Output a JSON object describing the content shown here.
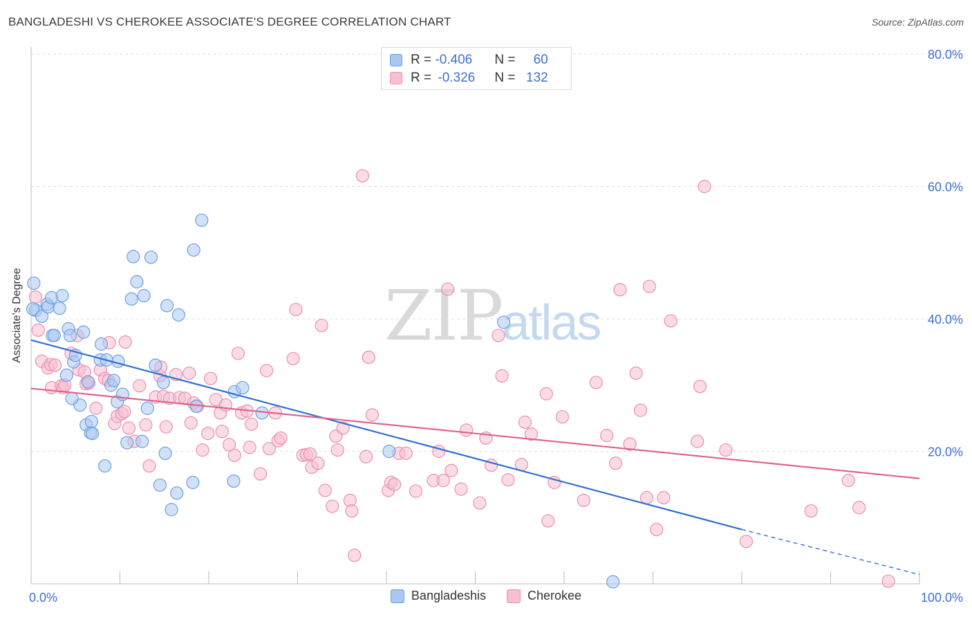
{
  "title": "BANGLADESHI VS CHEROKEE ASSOCIATE'S DEGREE CORRELATION CHART",
  "source": "Source: ZipAtlas.com",
  "watermark": {
    "zip": "ZIP",
    "atlas": "atlas"
  },
  "legend": {
    "rows": [
      {
        "r_label": "R = ",
        "r_value": "-0.406",
        "n_label": "N = ",
        "n_value": "60"
      },
      {
        "r_label": "R = ",
        "r_value": "-0.326",
        "n_label": "N = ",
        "n_value": "132"
      }
    ]
  },
  "colors": {
    "blue_fill": "#a9c8f2",
    "blue_stroke": "#6f9fe0",
    "blue_line": "#2f6fd0",
    "pink_fill": "#f7bfd1",
    "pink_stroke": "#ea8fae",
    "pink_line": "#e0608e",
    "axis_text": "#3a6fd8"
  },
  "chart_data": {
    "type": "scatter",
    "title": "BANGLADESHI VS CHEROKEE ASSOCIATE'S DEGREE CORRELATION CHART",
    "xlabel": "",
    "ylabel": "Associate's Degree",
    "xlim": [
      0,
      100
    ],
    "ylim": [
      0,
      80
    ],
    "x_tick_labels": [
      "0.0%",
      "100.0%"
    ],
    "y_ticks": [
      20,
      40,
      60,
      80
    ],
    "y_tick_labels": [
      "20.0%",
      "40.0%",
      "60.0%",
      "80.0%"
    ],
    "grid": true,
    "legend_position": "bottom-center",
    "series": [
      {
        "name": "Bangladeshis",
        "color": "#a9c8f2",
        "trend": {
          "x": [
            0,
            80
          ],
          "y": [
            36.8,
            8.2
          ],
          "dashed_to": [
            100,
            1.4
          ]
        },
        "points": [
          [
            0.3,
            45.4
          ],
          [
            0.5,
            41.3
          ],
          [
            1.2,
            40.4
          ],
          [
            1.8,
            42.2
          ],
          [
            1.9,
            41.8
          ],
          [
            2.3,
            43.2
          ],
          [
            2.4,
            37.5
          ],
          [
            2.6,
            37.5
          ],
          [
            3.2,
            41.6
          ],
          [
            3.5,
            43.5
          ],
          [
            4.0,
            31.5
          ],
          [
            4.2,
            38.5
          ],
          [
            4.4,
            37.5
          ],
          [
            4.8,
            33.5
          ],
          [
            5.0,
            34.5
          ],
          [
            5.5,
            27.0
          ],
          [
            5.9,
            38.0
          ],
          [
            6.2,
            24.0
          ],
          [
            6.4,
            30.5
          ],
          [
            6.7,
            22.8
          ],
          [
            6.8,
            24.5
          ],
          [
            6.9,
            22.7
          ],
          [
            7.8,
            33.8
          ],
          [
            7.9,
            36.2
          ],
          [
            8.3,
            17.8
          ],
          [
            8.5,
            33.8
          ],
          [
            9.0,
            30.0
          ],
          [
            9.3,
            30.7
          ],
          [
            9.7,
            27.5
          ],
          [
            9.8,
            33.6
          ],
          [
            10.3,
            28.6
          ],
          [
            10.8,
            21.3
          ],
          [
            11.3,
            43.0
          ],
          [
            11.5,
            49.4
          ],
          [
            11.9,
            45.6
          ],
          [
            12.5,
            21.5
          ],
          [
            12.7,
            43.5
          ],
          [
            13.1,
            26.5
          ],
          [
            13.5,
            49.3
          ],
          [
            14.0,
            33.0
          ],
          [
            14.5,
            14.9
          ],
          [
            14.9,
            30.4
          ],
          [
            15.1,
            19.7
          ],
          [
            15.3,
            42.0
          ],
          [
            15.8,
            11.2
          ],
          [
            16.4,
            13.7
          ],
          [
            16.6,
            40.6
          ],
          [
            18.2,
            15.3
          ],
          [
            18.3,
            50.4
          ],
          [
            18.6,
            26.8
          ],
          [
            19.2,
            54.9
          ],
          [
            22.8,
            15.5
          ],
          [
            22.9,
            29.0
          ],
          [
            23.8,
            29.6
          ],
          [
            26.0,
            25.8
          ],
          [
            40.3,
            20.0
          ],
          [
            53.2,
            39.5
          ],
          [
            65.5,
            0.3
          ],
          [
            0.2,
            41.5
          ],
          [
            4.6,
            28.0
          ]
        ]
      },
      {
        "name": "Cherokee",
        "color": "#f7bfd1",
        "trend": {
          "x": [
            0,
            100
          ],
          "y": [
            29.5,
            15.9
          ]
        },
        "points": [
          [
            0.5,
            43.3
          ],
          [
            0.8,
            38.3
          ],
          [
            1.2,
            33.6
          ],
          [
            1.9,
            32.6
          ],
          [
            2.2,
            33.1
          ],
          [
            2.3,
            29.6
          ],
          [
            2.7,
            33.0
          ],
          [
            3.4,
            29.9
          ],
          [
            3.6,
            29.6
          ],
          [
            3.8,
            30.0
          ],
          [
            4.5,
            34.8
          ],
          [
            5.2,
            37.5
          ],
          [
            5.4,
            32.3
          ],
          [
            6.2,
            30.2
          ],
          [
            6.5,
            30.3
          ],
          [
            7.3,
            26.5
          ],
          [
            7.8,
            32.3
          ],
          [
            8.3,
            31.0
          ],
          [
            8.7,
            30.7
          ],
          [
            8.8,
            36.4
          ],
          [
            9.4,
            24.2
          ],
          [
            9.7,
            25.3
          ],
          [
            10.2,
            25.7
          ],
          [
            10.5,
            26.0
          ],
          [
            11.0,
            23.5
          ],
          [
            11.6,
            21.5
          ],
          [
            12.2,
            29.9
          ],
          [
            12.9,
            24.0
          ],
          [
            13.3,
            17.8
          ],
          [
            14.0,
            28.2
          ],
          [
            14.5,
            31.4
          ],
          [
            14.9,
            28.3
          ],
          [
            15.2,
            23.7
          ],
          [
            15.6,
            28.0
          ],
          [
            16.3,
            31.6
          ],
          [
            16.7,
            28.1
          ],
          [
            17.3,
            28.0
          ],
          [
            17.8,
            31.8
          ],
          [
            18.0,
            24.3
          ],
          [
            18.3,
            27.3
          ],
          [
            18.7,
            26.8
          ],
          [
            19.3,
            20.2
          ],
          [
            19.9,
            22.7
          ],
          [
            20.2,
            31.0
          ],
          [
            20.8,
            27.8
          ],
          [
            21.3,
            25.8
          ],
          [
            21.5,
            23.0
          ],
          [
            21.9,
            27.0
          ],
          [
            22.3,
            21.0
          ],
          [
            22.9,
            19.4
          ],
          [
            23.3,
            34.8
          ],
          [
            23.7,
            25.8
          ],
          [
            24.3,
            26.1
          ],
          [
            24.6,
            20.6
          ],
          [
            24.8,
            24.1
          ],
          [
            25.8,
            16.6
          ],
          [
            26.5,
            32.2
          ],
          [
            26.8,
            20.4
          ],
          [
            27.5,
            25.8
          ],
          [
            27.8,
            21.6
          ],
          [
            28.1,
            22.0
          ],
          [
            29.5,
            34.0
          ],
          [
            29.8,
            41.4
          ],
          [
            30.6,
            19.4
          ],
          [
            31.0,
            19.5
          ],
          [
            31.4,
            19.6
          ],
          [
            31.6,
            17.6
          ],
          [
            32.3,
            18.2
          ],
          [
            32.7,
            39.0
          ],
          [
            33.1,
            14.1
          ],
          [
            33.9,
            11.7
          ],
          [
            34.3,
            22.3
          ],
          [
            34.5,
            20.2
          ],
          [
            35.1,
            23.5
          ],
          [
            35.9,
            12.6
          ],
          [
            36.1,
            11.0
          ],
          [
            36.4,
            4.3
          ],
          [
            37.3,
            61.6
          ],
          [
            37.7,
            19.2
          ],
          [
            38.0,
            34.2
          ],
          [
            38.4,
            25.5
          ],
          [
            40.2,
            14.1
          ],
          [
            40.5,
            15.3
          ],
          [
            40.9,
            15.0
          ],
          [
            41.4,
            19.7
          ],
          [
            42.2,
            19.7
          ],
          [
            43.3,
            14.0
          ],
          [
            45.3,
            15.6
          ],
          [
            45.9,
            20.0
          ],
          [
            46.4,
            15.6
          ],
          [
            46.9,
            44.5
          ],
          [
            47.3,
            17.1
          ],
          [
            48.4,
            14.3
          ],
          [
            49.0,
            23.2
          ],
          [
            50.5,
            12.2
          ],
          [
            51.2,
            22.0
          ],
          [
            51.8,
            17.9
          ],
          [
            52.6,
            37.5
          ],
          [
            53.0,
            31.4
          ],
          [
            53.7,
            15.7
          ],
          [
            55.2,
            18.0
          ],
          [
            55.6,
            24.4
          ],
          [
            56.3,
            22.6
          ],
          [
            58.0,
            28.7
          ],
          [
            58.2,
            9.5
          ],
          [
            58.9,
            15.3
          ],
          [
            59.8,
            25.2
          ],
          [
            62.2,
            12.6
          ],
          [
            63.6,
            30.4
          ],
          [
            64.8,
            22.4
          ],
          [
            65.8,
            18.2
          ],
          [
            66.3,
            44.4
          ],
          [
            67.4,
            21.1
          ],
          [
            68.1,
            31.8
          ],
          [
            68.6,
            26.2
          ],
          [
            69.3,
            13.0
          ],
          [
            69.6,
            44.9
          ],
          [
            70.4,
            8.2
          ],
          [
            71.2,
            13.0
          ],
          [
            72.0,
            39.7
          ],
          [
            75.0,
            21.5
          ],
          [
            75.3,
            29.8
          ],
          [
            75.8,
            60.0
          ],
          [
            78.2,
            20.2
          ],
          [
            80.5,
            6.4
          ],
          [
            87.8,
            11.0
          ],
          [
            92.0,
            15.6
          ],
          [
            93.2,
            11.5
          ],
          [
            96.5,
            0.4
          ],
          [
            6.0,
            32.0
          ],
          [
            10.6,
            36.5
          ],
          [
            14.6,
            32.7
          ]
        ]
      }
    ]
  },
  "bottom_legend": {
    "items": [
      "Bangladeshis",
      "Cherokee"
    ]
  }
}
